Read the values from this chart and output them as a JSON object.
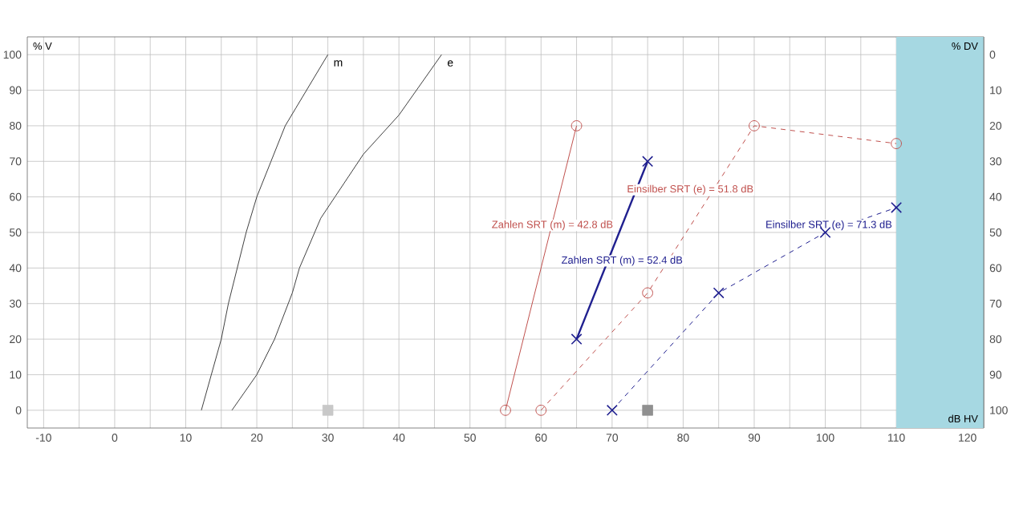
{
  "chart_data": {
    "type": "line",
    "xlabel": "dB HV",
    "ylabel": "% V",
    "y2label": "% DV",
    "xlim": [
      -12.3,
      122.3
    ],
    "ylim": [
      -5,
      105
    ],
    "y2lim": [
      105,
      -5
    ],
    "xticks": [
      -10,
      {
        "value": -5,
        "label": null
      },
      0,
      {
        "value": 5,
        "label": null
      },
      10,
      {
        "value": 15,
        "label": null
      },
      20,
      {
        "value": 25,
        "label": null
      },
      30,
      {
        "value": 35,
        "label": null
      },
      40,
      {
        "value": 45,
        "label": null
      },
      50,
      {
        "value": 55,
        "label": null
      },
      60,
      {
        "value": 65,
        "label": null
      },
      70,
      {
        "value": 75,
        "label": null
      },
      80,
      {
        "value": 85,
        "label": null
      },
      90,
      {
        "value": 95,
        "label": null
      },
      100,
      {
        "value": 105,
        "label": null
      },
      110,
      {
        "value": 115,
        "label": null
      },
      120
    ],
    "yticks": [
      0,
      10,
      20,
      30,
      40,
      50,
      60,
      70,
      80,
      90,
      100
    ],
    "y2ticks": [
      0,
      10,
      20,
      30,
      40,
      50,
      60,
      70,
      80,
      90,
      100
    ],
    "grid": true,
    "bands": [
      {
        "axis": "x",
        "from": 110,
        "to": 122.3,
        "color": "#a6d8e2"
      }
    ],
    "annotations": [
      "Zahlen SRT (m) = 42.8 dB",
      "Einsilber SRT (e) = 51.8 dB",
      "Zahlen SRT (m) = 52.4 dB",
      "Einsilber SRT (e) = 71.3 dB"
    ],
    "series": [
      {
        "name": "m",
        "color": "#404040",
        "marker": "none",
        "line_style": "solid",
        "x": [
          12.2,
          15,
          16,
          18.5,
          20,
          22,
          24,
          25.5,
          30
        ],
        "values": [
          0,
          20,
          30,
          50,
          60,
          70,
          80,
          85,
          100
        ]
      },
      {
        "name": "e",
        "color": "#404040",
        "marker": "none",
        "line_style": "solid",
        "x": [
          16.5,
          20,
          22.5,
          25,
          26,
          29,
          31,
          35,
          40,
          46
        ],
        "values": [
          0,
          10,
          20,
          33,
          40,
          54,
          60,
          72,
          83,
          100
        ]
      },
      {
        "color": "#c0504d",
        "marker": "circle",
        "line_style": "solid",
        "x": [
          55,
          65
        ],
        "values": [
          0,
          80
        ]
      },
      {
        "color": "#c0504d",
        "marker": "circle",
        "line_style": "dashed",
        "x": [
          60,
          75,
          90,
          110
        ],
        "values": [
          0,
          33,
          80,
          75
        ]
      },
      {
        "color": "#1f1f8f",
        "marker": "cross",
        "line_style": "solid",
        "x": [
          65,
          75
        ],
        "values": [
          20,
          70
        ]
      },
      {
        "color": "#1f1f8f",
        "marker": "cross",
        "line_style": "dashed",
        "x": [
          70,
          85,
          100,
          110
        ],
        "values": [
          0,
          33,
          50,
          57
        ]
      },
      {
        "type": "scatter",
        "color": "#c8c8c8",
        "marker": "square",
        "x": [
          30
        ],
        "values": [
          0
        ]
      },
      {
        "type": "scatter",
        "color": "#909090",
        "marker": "square",
        "x": [
          75
        ],
        "values": [
          0
        ]
      }
    ]
  }
}
